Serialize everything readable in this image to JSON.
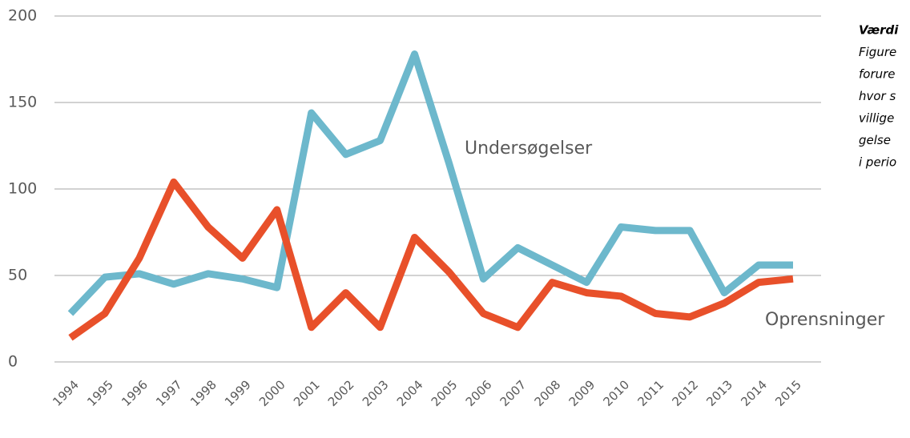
{
  "chart_data": {
    "type": "line",
    "categories": [
      "1994",
      "1995",
      "1996",
      "1997",
      "1998",
      "1999",
      "2000",
      "2001",
      "2002",
      "2003",
      "2004",
      "2005",
      "2006",
      "2007",
      "2008",
      "2009",
      "2010",
      "2011",
      "2012",
      "2013",
      "2014",
      "2015"
    ],
    "series": [
      {
        "name": "Undersøgelser",
        "color": "#6db8cc",
        "values": [
          28,
          49,
          51,
          45,
          51,
          48,
          43,
          144,
          120,
          128,
          178,
          115,
          48,
          66,
          56,
          46,
          78,
          76,
          76,
          40,
          56,
          56
        ]
      },
      {
        "name": "Oprensninger",
        "color": "#e8502a",
        "values": [
          14,
          28,
          60,
          104,
          78,
          60,
          88,
          20,
          40,
          20,
          72,
          52,
          28,
          20,
          46,
          40,
          38,
          28,
          26,
          34,
          46,
          48
        ]
      }
    ],
    "ylim": [
      0,
      200
    ],
    "yticks": [
      0,
      50,
      100,
      150,
      200
    ],
    "grid": true,
    "note": [
      "Værdi",
      "Figure",
      "forure",
      "hvor s",
      "villige",
      "gelse",
      "i perio"
    ]
  }
}
